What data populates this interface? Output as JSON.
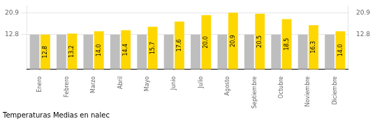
{
  "chart_data": {
    "type": "bar",
    "title": "Temperaturas Medias en nalec",
    "categories": [
      "Enero",
      "Febrero",
      "Marzo",
      "Abril",
      "Mayo",
      "Junio",
      "Julio",
      "Agosto",
      "Septiembre",
      "Octubre",
      "Noviembre",
      "Diciembre"
    ],
    "series": [
      {
        "color": "#BEBEBE",
        "values": [
          12.8,
          12.8,
          12.8,
          12.8,
          12.8,
          12.8,
          12.8,
          12.8,
          12.8,
          12.8,
          12.8,
          12.8
        ]
      },
      {
        "color": "#FFD700",
        "values": [
          12.8,
          13.2,
          14.0,
          14.4,
          15.7,
          17.6,
          20.0,
          20.9,
          20.5,
          18.5,
          16.3,
          14.0
        ],
        "data_labels": true,
        "value_labels": [
          "12.8",
          "13.2",
          "14.0",
          "14.4",
          "15.7",
          "17.6",
          "20.0",
          "20.9",
          "20.5",
          "18.5",
          "16.3",
          "14.0"
        ]
      }
    ],
    "ylim": [
      0,
      23.408
    ],
    "yticks": [
      12.8,
      20.9
    ],
    "y2lim": [
      0,
      23.408
    ],
    "y2ticks": [
      12.8,
      20.9
    ],
    "grid": true
  }
}
